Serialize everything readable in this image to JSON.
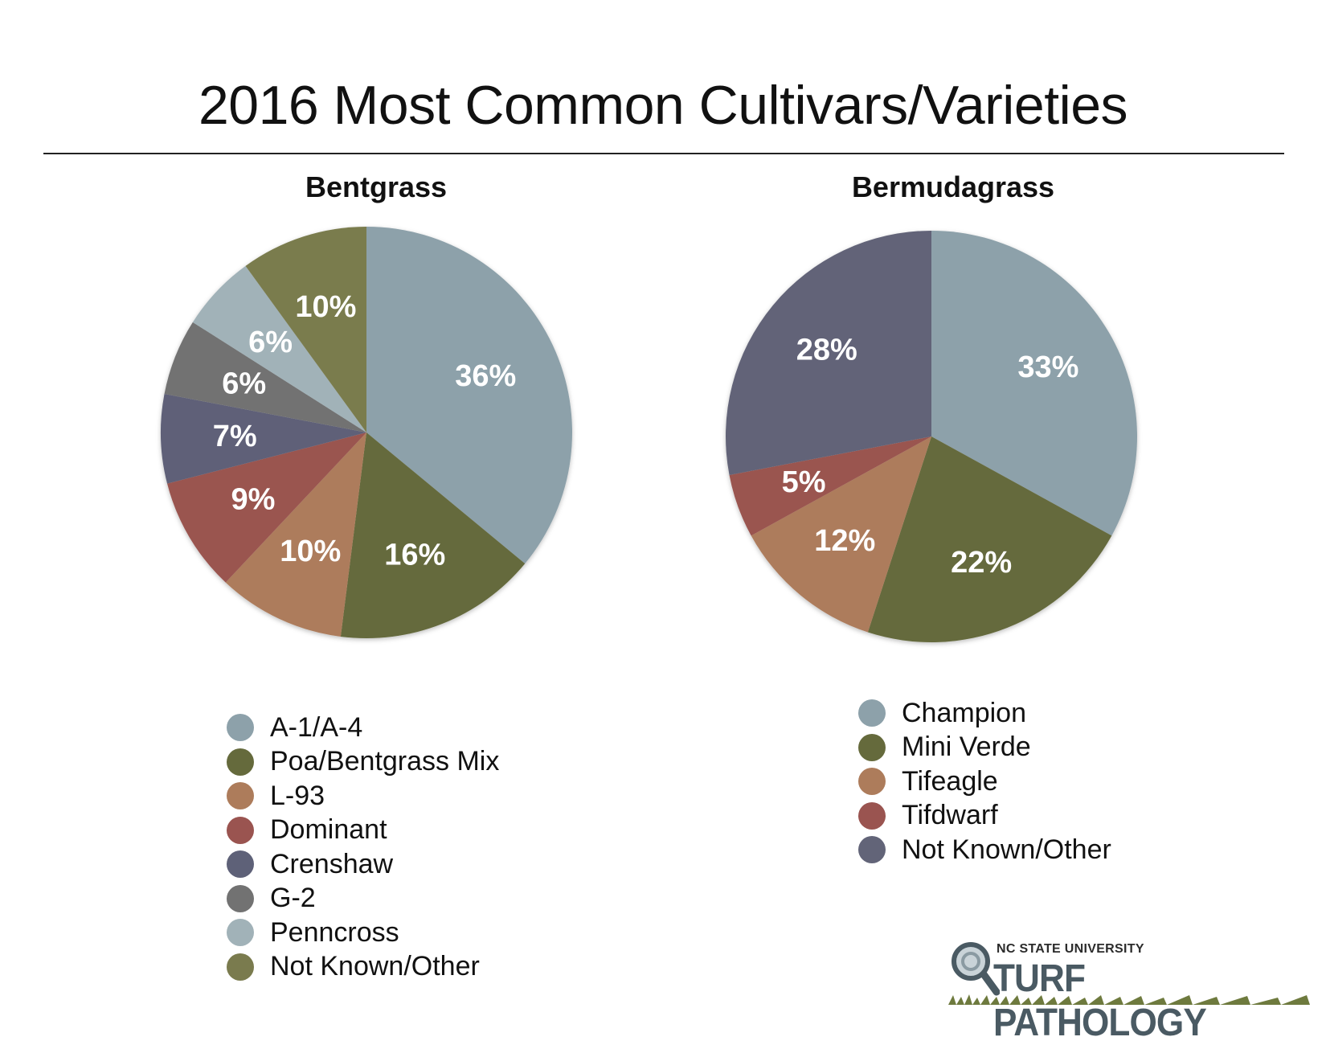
{
  "title": "2016 Most Common Cultivars/Varieties",
  "chart_data": [
    {
      "type": "pie",
      "title": "Bentgrass",
      "legend_position": "bottom",
      "slices": [
        {
          "label": "A-1/A-4",
          "value": 36,
          "display": "36%",
          "color": "#8da1aa"
        },
        {
          "label": "Poa/Bentgrass Mix",
          "value": 16,
          "display": "16%",
          "color": "#656a3c"
        },
        {
          "label": "L-93",
          "value": 10,
          "display": "10%",
          "color": "#ad7c5b"
        },
        {
          "label": "Dominant",
          "value": 9,
          "display": "9%",
          "color": "#9a5450"
        },
        {
          "label": "Crenshaw",
          "value": 7,
          "display": "7%",
          "color": "#5e6178"
        },
        {
          "label": "G-2",
          "value": 6,
          "display": "6%",
          "color": "#727272"
        },
        {
          "label": "Penncross",
          "value": 6,
          "display": "6%",
          "color": "#a1b2b8"
        },
        {
          "label": "Not Known/Other",
          "value": 10,
          "display": "10%",
          "color": "#7a7b4e"
        }
      ]
    },
    {
      "type": "pie",
      "title": "Bermudagrass",
      "legend_position": "bottom",
      "slices": [
        {
          "label": "Champion",
          "value": 33,
          "display": "33%",
          "color": "#8da1aa"
        },
        {
          "label": "Mini Verde",
          "value": 22,
          "display": "22%",
          "color": "#656a3c"
        },
        {
          "label": "Tifeagle",
          "value": 12,
          "display": "12%",
          "color": "#ad7c5b"
        },
        {
          "label": "Tifdwarf",
          "value": 5,
          "display": "5%",
          "color": "#9a5450"
        },
        {
          "label": "Not Known/Other",
          "value": 28,
          "display": "28%",
          "color": "#626478"
        }
      ]
    }
  ],
  "logo": {
    "university": "NC STATE UNIVERSITY",
    "name": "TURF PATHOLOGY"
  }
}
